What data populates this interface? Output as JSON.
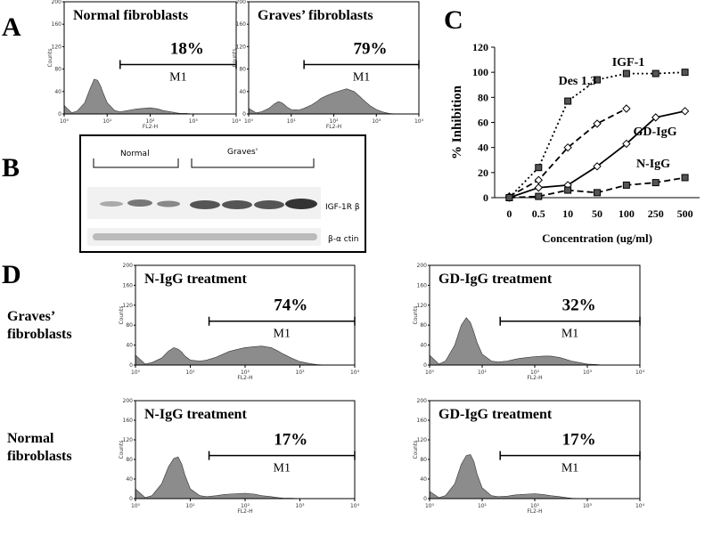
{
  "panel_labels": [
    "A",
    "B",
    "C",
    "D"
  ],
  "row_labels": [
    [
      "Graves’",
      "fibroblasts"
    ],
    [
      "Normal",
      "fibroblasts"
    ]
  ],
  "blot": {
    "groups": [
      "Normal",
      "Graves'"
    ],
    "bands": [
      "IGF-1R β",
      "β-α ctin"
    ]
  },
  "chart_data": [
    {
      "type": "histogram",
      "title": "Normal fibroblasts",
      "annotation": "18%",
      "xlabel": "FL2-H",
      "ylabel": "Counts",
      "log_x": true,
      "color": "#8c8c8c",
      "gate": {
        "label": "M1",
        "start": 20,
        "end": 10000
      },
      "x": [
        1,
        1.5,
        2,
        3,
        4,
        5,
        6,
        7,
        8,
        10,
        15,
        20,
        30,
        40,
        50,
        70,
        100,
        150,
        200,
        300,
        400,
        500,
        700,
        1000,
        1500,
        2000,
        3000,
        5000,
        10000
      ],
      "values": [
        15,
        2,
        5,
        20,
        45,
        62,
        60,
        50,
        38,
        20,
        6,
        4,
        6,
        8,
        9,
        10,
        11,
        9,
        6,
        4,
        2,
        1,
        1,
        0,
        0,
        0,
        0,
        0,
        0
      ],
      "xlim": [
        1,
        10000
      ],
      "xticks": [
        {
          "value": 1,
          "label": "10⁰"
        },
        {
          "value": 10,
          "label": "10¹"
        },
        {
          "value": 100,
          "label": "10²"
        },
        {
          "value": 1000,
          "label": "10³"
        },
        {
          "value": 10000,
          "label": "10⁴"
        }
      ],
      "ylim": [
        0,
        200
      ],
      "yticks": [
        0,
        40,
        80,
        120,
        160,
        200
      ]
    },
    {
      "type": "histogram",
      "title": "Graves’ fibroblasts",
      "annotation": "79%",
      "xlabel": "FL2-H",
      "ylabel": "Counts",
      "log_x": true,
      "color": "#8c8c8c",
      "gate": {
        "label": "M1",
        "start": 20,
        "end": 10000
      },
      "x": [
        1,
        1.5,
        2,
        3,
        4,
        5,
        6,
        7,
        8,
        10,
        15,
        20,
        30,
        40,
        50,
        70,
        100,
        150,
        200,
        300,
        400,
        500,
        700,
        1000,
        1500,
        2000,
        3000,
        5000,
        10000
      ],
      "values": [
        10,
        2,
        4,
        10,
        18,
        22,
        20,
        16,
        12,
        8,
        7,
        10,
        16,
        22,
        28,
        33,
        38,
        42,
        45,
        40,
        32,
        25,
        15,
        8,
        3,
        1,
        0,
        0,
        0
      ],
      "xlim": [
        1,
        10000
      ],
      "xticks": [
        {
          "value": 1,
          "label": "10⁰"
        },
        {
          "value": 10,
          "label": "10¹"
        },
        {
          "value": 100,
          "label": "10²"
        },
        {
          "value": 1000,
          "label": "10³"
        },
        {
          "value": 10000,
          "label": "10⁴"
        }
      ],
      "ylim": [
        0,
        200
      ],
      "yticks": [
        0,
        40,
        80,
        120,
        160,
        200
      ]
    },
    {
      "type": "line",
      "xlabel": "Concentration (ug/ml)",
      "ylabel": "% Inhibition",
      "categories": [
        "0",
        "0.5",
        "10",
        "50",
        "100",
        "250",
        "500"
      ],
      "ylim": [
        0,
        120
      ],
      "yticks": [
        0,
        20,
        40,
        60,
        80,
        100,
        120
      ],
      "series": [
        {
          "name": "IGF-1",
          "color": "#000000",
          "style": "dotted",
          "marker": "square",
          "values": [
            0,
            24,
            77,
            94,
            99,
            99,
            100
          ]
        },
        {
          "name": "Des 1,3",
          "color": "#000000",
          "style": "dashed",
          "marker": "diamond",
          "values": [
            1,
            14,
            40,
            59,
            71,
            null,
            null
          ]
        },
        {
          "name": "GD-IgG",
          "color": "#000000",
          "style": "solid",
          "marker": "diamond",
          "values": [
            0,
            8,
            10,
            25,
            43,
            64,
            69
          ]
        },
        {
          "name": "N-IgG",
          "color": "#000000",
          "style": "dashed",
          "marker": "square",
          "values": [
            0,
            1,
            6,
            4,
            10,
            12,
            16
          ]
        }
      ]
    },
    {
      "type": "histogram",
      "title": "N-IgG treatment",
      "annotation": "74%",
      "xlabel": "FL2-H",
      "ylabel": "Counts",
      "log_x": true,
      "color": "#8c8c8c",
      "gate": {
        "label": "M1",
        "start": 22,
        "end": 10000
      },
      "x": [
        1,
        1.5,
        2,
        3,
        4,
        5,
        6,
        7,
        8,
        10,
        15,
        20,
        30,
        40,
        50,
        70,
        100,
        150,
        200,
        300,
        400,
        500,
        700,
        1000,
        1500,
        2000,
        3000,
        5000,
        10000
      ],
      "values": [
        20,
        2,
        5,
        14,
        28,
        35,
        32,
        26,
        18,
        10,
        8,
        10,
        16,
        22,
        27,
        31,
        35,
        37,
        38,
        35,
        28,
        22,
        14,
        7,
        3,
        1,
        0,
        0,
        0
      ],
      "xlim": [
        1,
        10000
      ],
      "xticks": [
        {
          "value": 1,
          "label": "10⁰"
        },
        {
          "value": 10,
          "label": "10¹"
        },
        {
          "value": 100,
          "label": "10²"
        },
        {
          "value": 1000,
          "label": "10³"
        },
        {
          "value": 10000,
          "label": "10⁴"
        }
      ],
      "ylim": [
        0,
        200
      ],
      "yticks": [
        0,
        40,
        80,
        120,
        160,
        200
      ]
    },
    {
      "type": "histogram",
      "title": "GD-IgG treatment",
      "annotation": "32%",
      "xlabel": "FL2-H",
      "ylabel": "Counts",
      "log_x": true,
      "color": "#8c8c8c",
      "gate": {
        "label": "M1",
        "start": 22,
        "end": 10000
      },
      "x": [
        1,
        1.5,
        2,
        3,
        4,
        5,
        6,
        7,
        8,
        10,
        15,
        20,
        30,
        40,
        50,
        70,
        100,
        150,
        200,
        300,
        400,
        500,
        700,
        1000,
        1500,
        2000,
        3000,
        5000,
        10000
      ],
      "values": [
        20,
        2,
        8,
        40,
        80,
        95,
        85,
        65,
        45,
        22,
        8,
        6,
        8,
        11,
        13,
        15,
        17,
        18,
        18,
        15,
        11,
        8,
        5,
        2,
        1,
        0,
        0,
        0,
        0
      ],
      "xlim": [
        1,
        10000
      ],
      "xticks": [
        {
          "value": 1,
          "label": "10⁰"
        },
        {
          "value": 10,
          "label": "10¹"
        },
        {
          "value": 100,
          "label": "10²"
        },
        {
          "value": 1000,
          "label": "10³"
        },
        {
          "value": 10000,
          "label": "10⁴"
        }
      ],
      "ylim": [
        0,
        200
      ],
      "yticks": [
        0,
        40,
        80,
        120,
        160,
        200
      ]
    },
    {
      "type": "histogram",
      "title": "N-IgG treatment",
      "annotation": "17%",
      "xlabel": "FL2-H",
      "ylabel": "Counts",
      "log_x": true,
      "color": "#8c8c8c",
      "gate": {
        "label": "M1",
        "start": 22,
        "end": 10000
      },
      "x": [
        1,
        1.5,
        2,
        3,
        4,
        5,
        6,
        7,
        8,
        10,
        15,
        20,
        30,
        40,
        50,
        70,
        100,
        150,
        200,
        300,
        400,
        500,
        700,
        1000,
        1500,
        2000,
        3000,
        5000,
        10000
      ],
      "values": [
        20,
        2,
        6,
        30,
        65,
        82,
        85,
        70,
        48,
        20,
        6,
        4,
        6,
        8,
        9,
        10,
        11,
        9,
        6,
        4,
        2,
        1,
        1,
        0,
        0,
        0,
        0,
        0,
        0
      ],
      "xlim": [
        1,
        10000
      ],
      "xticks": [
        {
          "value": 1,
          "label": "10⁰"
        },
        {
          "value": 10,
          "label": "10¹"
        },
        {
          "value": 100,
          "label": "10²"
        },
        {
          "value": 1000,
          "label": "10³"
        },
        {
          "value": 10000,
          "label": "10⁴"
        }
      ],
      "ylim": [
        0,
        200
      ],
      "yticks": [
        0,
        40,
        80,
        120,
        160,
        200
      ]
    },
    {
      "type": "histogram",
      "title": "GD-IgG treatment",
      "annotation": "17%",
      "xlabel": "FL2-H",
      "ylabel": "Counts",
      "log_x": true,
      "color": "#8c8c8c",
      "gate": {
        "label": "M1",
        "start": 22,
        "end": 10000
      },
      "x": [
        1,
        1.5,
        2,
        3,
        4,
        5,
        6,
        7,
        8,
        10,
        15,
        20,
        30,
        40,
        50,
        70,
        100,
        150,
        200,
        300,
        400,
        500,
        700,
        1000,
        1500,
        2000,
        3000,
        5000,
        10000
      ],
      "values": [
        15,
        2,
        6,
        30,
        70,
        88,
        90,
        75,
        50,
        22,
        6,
        4,
        5,
        7,
        8,
        9,
        10,
        8,
        6,
        4,
        2,
        1,
        0,
        0,
        0,
        0,
        0,
        0,
        0
      ],
      "xlim": [
        1,
        10000
      ],
      "xticks": [
        {
          "value": 1,
          "label": "10⁰"
        },
        {
          "value": 10,
          "label": "10¹"
        },
        {
          "value": 100,
          "label": "10²"
        },
        {
          "value": 1000,
          "label": "10³"
        },
        {
          "value": 10000,
          "label": "10⁴"
        }
      ],
      "ylim": [
        0,
        200
      ],
      "yticks": [
        0,
        40,
        80,
        120,
        160,
        200
      ]
    }
  ]
}
